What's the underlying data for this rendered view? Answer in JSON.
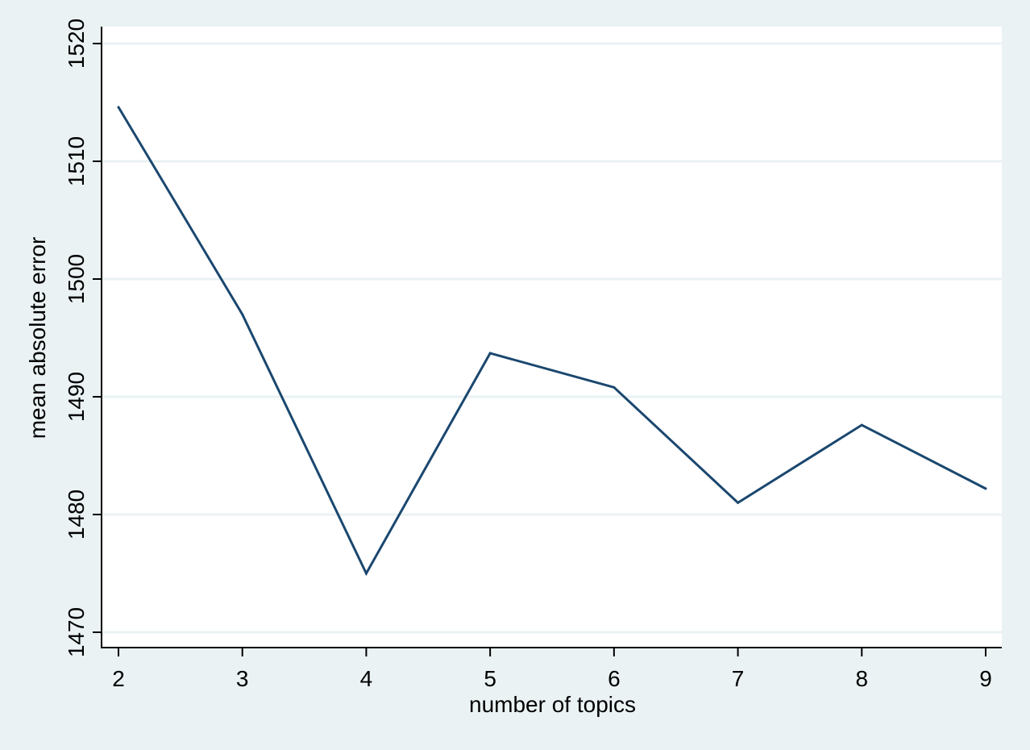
{
  "chart_data": {
    "type": "line",
    "title": "",
    "xlabel": "number of topics",
    "ylabel": "mean absolute error",
    "x": [
      2,
      3,
      4,
      5,
      6,
      7,
      8,
      9
    ],
    "series": [
      {
        "values": [
          1514.6,
          1497.0,
          1475.0,
          1493.7,
          1490.8,
          1481.0,
          1487.6,
          1482.2
        ]
      }
    ],
    "xticks": [
      "2",
      "3",
      "4",
      "5",
      "6",
      "7",
      "8",
      "9"
    ],
    "yticks": [
      "1470",
      "1480",
      "1490",
      "1500",
      "1510",
      "1520"
    ],
    "ytick_values": [
      1470,
      1480,
      1490,
      1500,
      1510,
      1520
    ],
    "xlim": [
      2,
      9
    ],
    "ylim": [
      1470,
      1520
    ],
    "grid": true,
    "legend": "none",
    "colors": {
      "background": "#eaf2f3",
      "plot_background": "#ffffff",
      "grid": "#eaf2f3",
      "line": "#1a476f",
      "axis": "#000000"
    }
  }
}
